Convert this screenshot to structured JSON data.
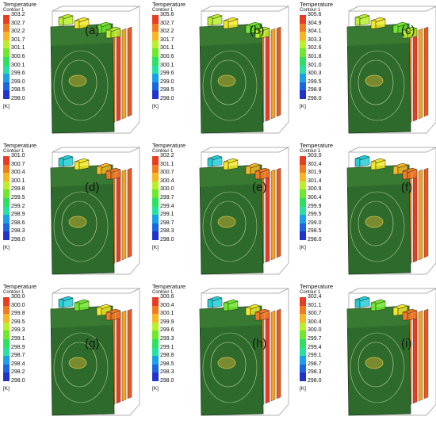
{
  "legend_title": "Temperature",
  "legend_subtitle": "Contour 1",
  "unit": "[K]",
  "colors": [
    "#2233cc",
    "#1a66e0",
    "#19a0ea",
    "#20d0d8",
    "#28e0a0",
    "#2de060",
    "#6ee82a",
    "#b8f02a",
    "#f2e826",
    "#f7b624",
    "#f47a22",
    "#e83d22"
  ],
  "panels": [
    {
      "label": "(a)",
      "ticks": [
        "303.2",
        "302.7",
        "302.2",
        "301.7",
        "301.1",
        "300.6",
        "300.1",
        "299.6",
        "299.0",
        "298.5",
        "298.0"
      ]
    },
    {
      "label": "(b)",
      "ticks": [
        "305.6",
        "302.7",
        "302.2",
        "301.7",
        "301.1",
        "300.6",
        "300.1",
        "299.6",
        "299.0",
        "298.5",
        "298.0"
      ]
    },
    {
      "label": "(c)",
      "ticks": [
        "305.6",
        "304.9",
        "304.1",
        "303.3",
        "302.6",
        "301.8",
        "301.0",
        "300.3",
        "299.5",
        "298.8",
        "298.0"
      ]
    },
    {
      "label": "(d)",
      "ticks": [
        "301.0",
        "300.7",
        "300.4",
        "300.1",
        "299.8",
        "299.5",
        "299.2",
        "298.9",
        "298.6",
        "298.3",
        "298.0"
      ]
    },
    {
      "label": "(e)",
      "ticks": [
        "302.2",
        "301.1",
        "300.7",
        "300.4",
        "300.0",
        "299.7",
        "299.4",
        "299.1",
        "298.7",
        "298.3",
        "298.0"
      ]
    },
    {
      "label": "(f)",
      "ticks": [
        "303.0",
        "302.4",
        "301.9",
        "301.4",
        "300.9",
        "300.4",
        "299.9",
        "299.5",
        "299.0",
        "298.5",
        "298.0"
      ]
    },
    {
      "label": "(g)",
      "ticks": [
        "300.0",
        "300.0",
        "299.8",
        "299.5",
        "299.3",
        "299.1",
        "298.9",
        "298.7",
        "298.4",
        "298.2",
        "298.0"
      ]
    },
    {
      "label": "(h)",
      "ticks": [
        "300.6",
        "300.4",
        "300.1",
        "299.9",
        "299.6",
        "299.3",
        "299.1",
        "298.8",
        "298.5",
        "298.3",
        "298.0"
      ]
    },
    {
      "label": "(i)",
      "ticks": [
        "302.4",
        "301.1",
        "300.7",
        "300.4",
        "300.0",
        "299.7",
        "299.4",
        "299.1",
        "298.7",
        "298.3",
        "298.0"
      ]
    }
  ]
}
